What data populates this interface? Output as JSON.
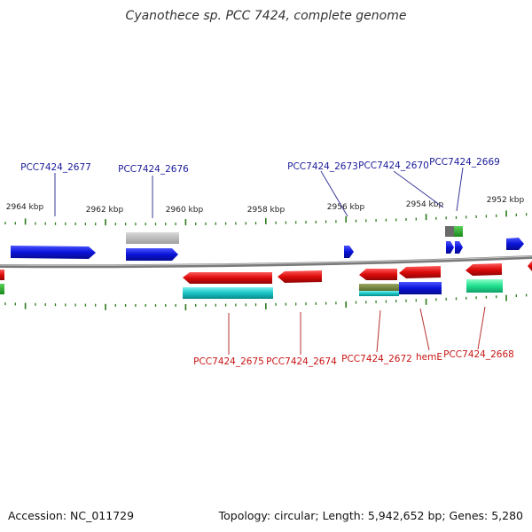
{
  "title": "Cyanothece sp. PCC 7424, complete genome",
  "accession": "Accession: NC_011729",
  "summary": "Topology: circular; Length: 5,942,652 bp; Genes: 5,280",
  "kbp_labels": [
    "2964 kbp",
    "2962 kbp",
    "2960 kbp",
    "2958 kbp",
    "2956 kbp",
    "2954 kbp",
    "2952 kbp"
  ],
  "top_genes": [
    "PCC7424_2677",
    "PCC7424_2676",
    "PCC7424_2673",
    "PCC7424_2670",
    "PCC7424_2669"
  ],
  "bottom_genes": [
    "PCC7424_2675",
    "PCC7424_2674",
    "PCC7424_2672",
    "hemE",
    "PCC7424_2668"
  ],
  "colors": {
    "forward": "#0a14d8",
    "reverse": "#dc0a0a",
    "top_label": "#1a1a9a",
    "bottom_label": "#c81414",
    "backbone": "#8a8a8a",
    "tick": "#2a7a1a"
  }
}
